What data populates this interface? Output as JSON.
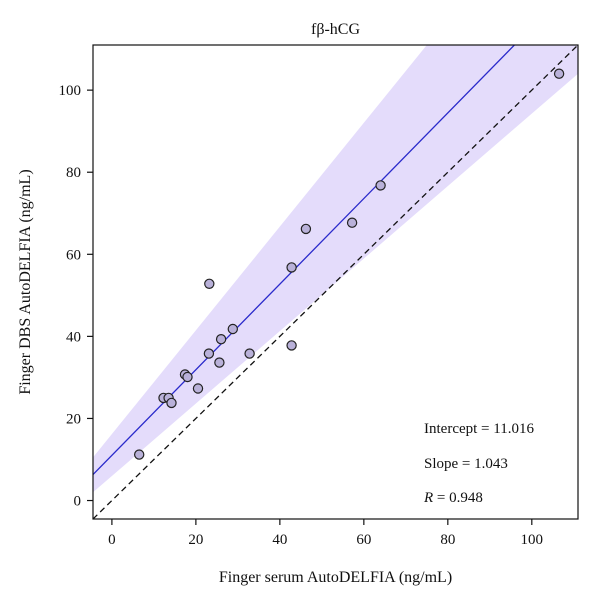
{
  "chart_data": {
    "type": "scatter",
    "title": "fβ-hCG",
    "xlabel": "Finger serum AutoDELFIA (ng/mL)",
    "ylabel": "Finger DBS AutoDELFIA (ng/mL)",
    "xlim": [
      -4.5,
      111
    ],
    "ylim": [
      -4.5,
      111
    ],
    "xticks": [
      0,
      20,
      40,
      60,
      80,
      100
    ],
    "yticks": [
      0,
      20,
      40,
      60,
      80,
      100
    ],
    "grid": false,
    "points": [
      {
        "x": 6.5,
        "y": 11.2
      },
      {
        "x": 12.3,
        "y": 25.0
      },
      {
        "x": 13.5,
        "y": 25.0
      },
      {
        "x": 14.2,
        "y": 23.8
      },
      {
        "x": 17.4,
        "y": 30.7
      },
      {
        "x": 18.0,
        "y": 30.1
      },
      {
        "x": 20.5,
        "y": 27.3
      },
      {
        "x": 23.1,
        "y": 35.8
      },
      {
        "x": 23.2,
        "y": 52.8
      },
      {
        "x": 25.6,
        "y": 33.6
      },
      {
        "x": 26.0,
        "y": 39.3
      },
      {
        "x": 28.8,
        "y": 41.8
      },
      {
        "x": 32.8,
        "y": 35.8
      },
      {
        "x": 42.8,
        "y": 56.8
      },
      {
        "x": 42.8,
        "y": 37.8
      },
      {
        "x": 46.2,
        "y": 66.2
      },
      {
        "x": 57.2,
        "y": 67.7
      },
      {
        "x": 64.0,
        "y": 76.8
      },
      {
        "x": 106.5,
        "y": 104.0
      }
    ],
    "regression": {
      "intercept": 11.016,
      "slope": 1.043
    },
    "identity_line": true,
    "confidence_band": {
      "lower_at_xlim": [
        [
          -4.5,
          2.0
        ],
        [
          111,
          104.0
        ]
      ],
      "upper_at_xlim": [
        [
          -4.5,
          10.5
        ],
        [
          75,
          111
        ]
      ]
    },
    "annotations": {
      "intercept_text": "Intercept = 11.016",
      "slope_text": "Slope = 1.043",
      "r_symbol": "R",
      "r_value_text": " = 0.948"
    },
    "colors": {
      "regression_line": "#2a2acb",
      "band_fill": "#e4dcfb",
      "point_fill": "#b9b1d9",
      "point_stroke": "#222222",
      "identity_line": "#111111"
    }
  }
}
